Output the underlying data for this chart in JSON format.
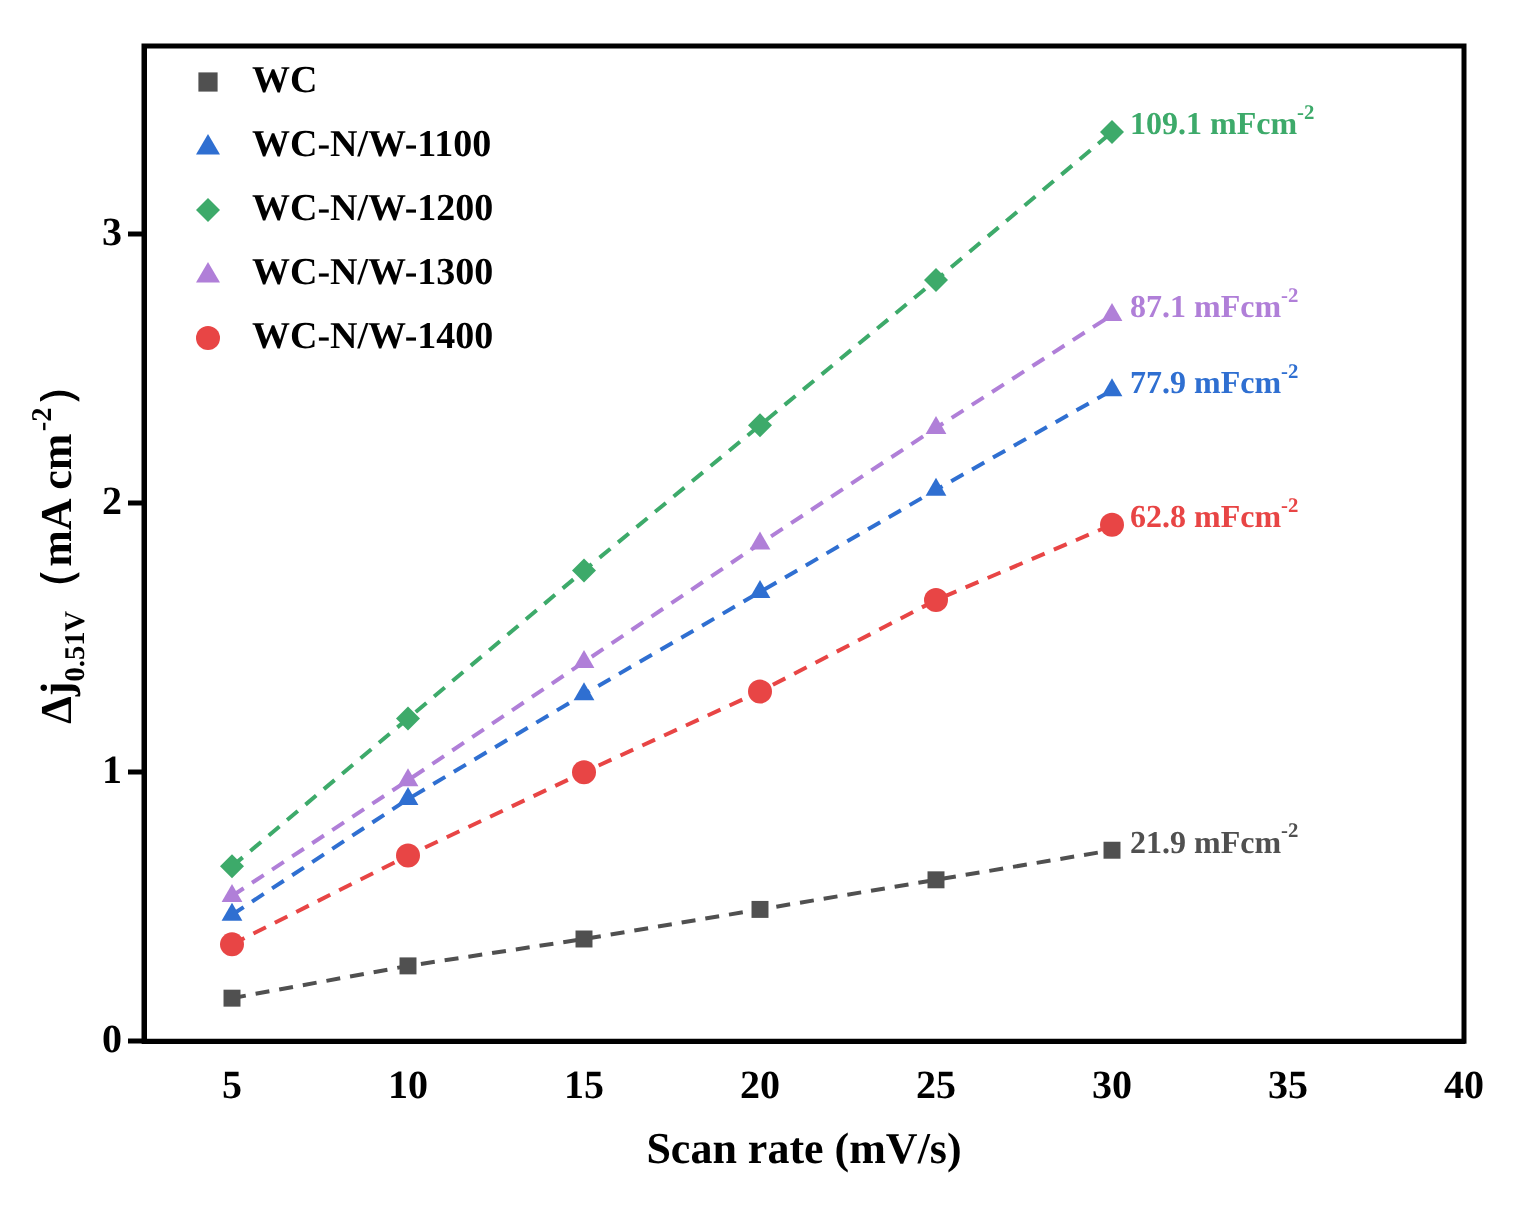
{
  "chart_data": {
    "type": "line",
    "xlabel": "Scan rate (mV/s)",
    "ylabel": "Δj$_{0.51V}$（mA cm$^{-2}$）",
    "x": [
      5,
      10,
      15,
      20,
      25,
      30
    ],
    "series": [
      {
        "name": "WC",
        "color": "#505050",
        "marker": "square",
        "values": [
          0.16,
          0.28,
          0.38,
          0.49,
          0.6,
          0.71
        ]
      },
      {
        "name": "WC-N/W-1100",
        "color": "#2f6fd1",
        "marker": "triangle",
        "values": [
          0.47,
          0.9,
          1.29,
          1.67,
          2.05,
          2.42
        ]
      },
      {
        "name": "WC-N/W-1200",
        "color": "#3daa6a",
        "marker": "diamond",
        "values": [
          0.65,
          1.2,
          1.75,
          2.29,
          2.83,
          3.38
        ]
      },
      {
        "name": "WC-N/W-1300",
        "color": "#b07fd8",
        "marker": "triangle",
        "values": [
          0.54,
          0.97,
          1.41,
          1.85,
          2.28,
          2.7
        ]
      },
      {
        "name": "WC-N/W-1400",
        "color": "#e84545",
        "marker": "circle",
        "values": [
          0.36,
          0.69,
          1.0,
          1.3,
          1.64,
          1.92
        ]
      }
    ],
    "annotations": [
      "21.9 mFcm$^{-2}$",
      "77.9 mFcm$^{-2}$",
      "109.1 mFcm$^{-2}$",
      "87.1 mFcm$^{-2}$",
      "62.8 mFcm$^{-2}$"
    ],
    "xlim": [
      2.5,
      40
    ],
    "xticks": [
      5,
      10,
      15,
      20,
      25,
      30,
      35,
      40
    ],
    "ylim": [
      0,
      3.7
    ],
    "yticks": [
      0,
      1,
      2,
      3
    ],
    "grid": false,
    "legend": "top left",
    "line_style": "dashed"
  }
}
